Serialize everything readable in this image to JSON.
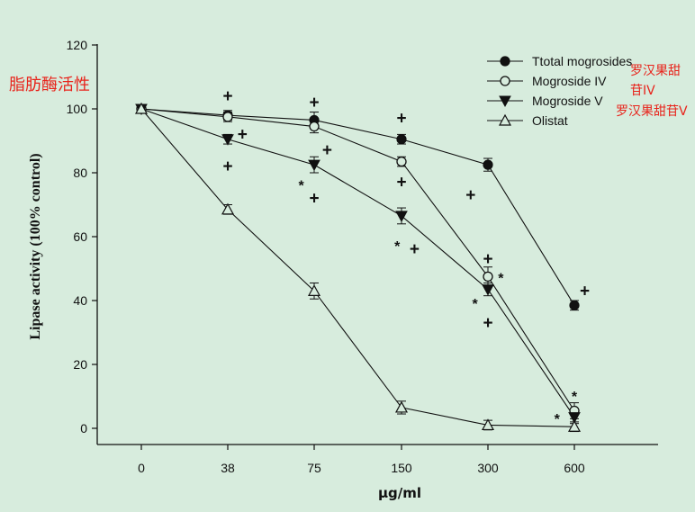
{
  "chart_data": {
    "type": "line",
    "title": "",
    "xlabel": "μg/ml",
    "ylabel": "Lipase activity (100% control)",
    "categories": [
      "0",
      "38",
      "75",
      "150",
      "300",
      "600"
    ],
    "ylim": [
      0,
      120
    ],
    "yticks": [
      0,
      20,
      40,
      60,
      80,
      100,
      120
    ],
    "grid": false,
    "legend_position": "top-right",
    "series": [
      {
        "name": "Ttotal mogrosides",
        "marker": "filled-circle",
        "values": [
          100,
          98,
          96.5,
          90.5,
          82.5,
          38.5
        ],
        "errors": [
          0,
          1.5,
          2.5,
          1.5,
          2.0,
          1.5
        ]
      },
      {
        "name": "Mogroside IV",
        "marker": "open-circle",
        "values": [
          100,
          97.5,
          94.5,
          83.5,
          47.5,
          5.5
        ],
        "errors": [
          0,
          1.5,
          2.0,
          1.5,
          3.0,
          2.5
        ]
      },
      {
        "name": "Mogroside V",
        "marker": "filled-triangle-down",
        "values": [
          100,
          90.5,
          82.5,
          66.5,
          43.5,
          3.5
        ],
        "errors": [
          0,
          1.5,
          2.5,
          2.5,
          2.0,
          2.0
        ]
      },
      {
        "name": "Olistat",
        "marker": "open-triangle-up",
        "values": [
          100,
          68.5,
          43,
          6.5,
          1,
          0.5
        ],
        "errors": [
          0,
          1.5,
          2.5,
          2.0,
          1.5,
          1.5
        ]
      }
    ],
    "annotations": [
      {
        "text": "+",
        "x": "38",
        "y": 104
      },
      {
        "text": "+",
        "x": "38",
        "y": 92,
        "dx": 0.17
      },
      {
        "text": "+",
        "x": "38",
        "y": 82
      },
      {
        "text": "+",
        "x": "75",
        "y": 102
      },
      {
        "text": "+",
        "x": "75",
        "y": 87,
        "dx": 0.15
      },
      {
        "text": "+",
        "x": "75",
        "y": 72
      },
      {
        "text": "*",
        "x": "75",
        "y": 77,
        "dx": -0.15
      },
      {
        "text": "+",
        "x": "150",
        "y": 97
      },
      {
        "text": "+",
        "x": "150",
        "y": 77
      },
      {
        "text": "+",
        "x": "150",
        "y": 56,
        "dx": 0.15
      },
      {
        "text": "*",
        "x": "150",
        "y": 58,
        "dx": -0.05
      },
      {
        "text": "+",
        "x": "300",
        "y": 73,
        "dx": -0.2
      },
      {
        "text": "+",
        "x": "300",
        "y": 53
      },
      {
        "text": "+",
        "x": "300",
        "y": 33
      },
      {
        "text": "*",
        "x": "300",
        "y": 48,
        "dx": 0.15
      },
      {
        "text": "*",
        "x": "300",
        "y": 40,
        "dx": -0.15
      },
      {
        "text": "+",
        "x": "600",
        "y": 43,
        "dx": 0.12
      },
      {
        "text": "*",
        "x": "600",
        "y": 11
      },
      {
        "text": "*",
        "x": "600",
        "y": 4,
        "dx": -0.2
      }
    ]
  },
  "overlay": {
    "ylabel_cn": "脂肪酶活性",
    "mogroside_iv_cn": "罗汉果甜苷IV",
    "mogroside_v_cn": "罗汉果甜苷V"
  },
  "colors": {
    "background": "#d7ecdd",
    "ink": "#111111",
    "overlay_text": "#e8231b"
  }
}
